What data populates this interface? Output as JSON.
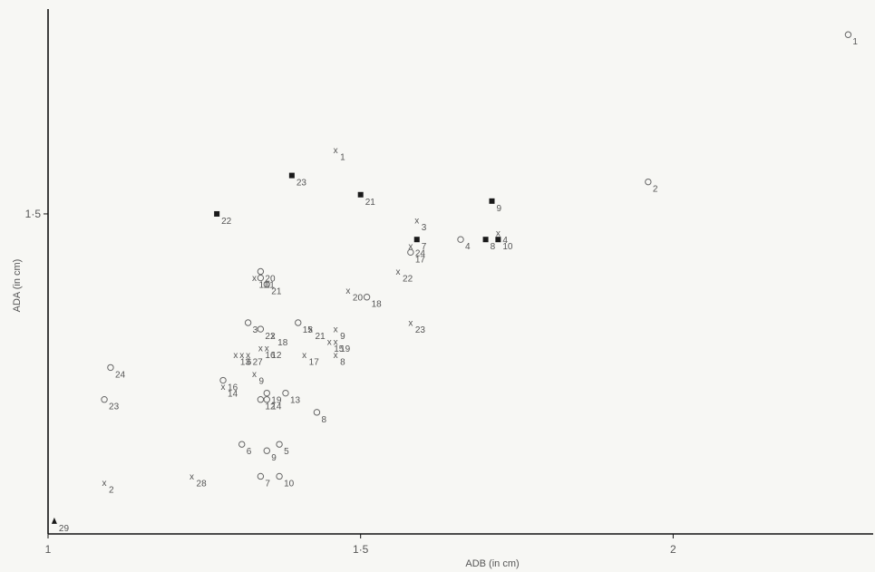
{
  "chart_data": {
    "type": "scatter",
    "xlabel": "ADB (in cm)",
    "ylabel": "ADA (in cm)",
    "xlim": [
      1,
      2.32
    ],
    "ylim": [
      1.0,
      1.82
    ],
    "x_ticks": [
      {
        "value": 1,
        "label": "1"
      },
      {
        "value": 1.5,
        "label": "1·5"
      },
      {
        "value": 2,
        "label": "2"
      }
    ],
    "y_ticks": [
      {
        "value": 1.5,
        "label": "1·5"
      }
    ],
    "marker_colors": {
      "axis": "#111111",
      "square": "#1a1a1a",
      "glyph": "#666666"
    },
    "series": [
      {
        "marker": "o",
        "points": [
          {
            "x": 2.28,
            "y": 1.78,
            "label": "1"
          },
          {
            "x": 1.96,
            "y": 1.55,
            "label": "2"
          },
          {
            "x": 1.32,
            "y": 1.33,
            "label": "3"
          },
          {
            "x": 1.66,
            "y": 1.46,
            "label": "4"
          },
          {
            "x": 1.37,
            "y": 1.14,
            "label": "5"
          },
          {
            "x": 1.31,
            "y": 1.14,
            "label": "6"
          },
          {
            "x": 1.34,
            "y": 1.09,
            "label": "7"
          },
          {
            "x": 1.43,
            "y": 1.19,
            "label": "8"
          },
          {
            "x": 1.35,
            "y": 1.13,
            "label": "9"
          },
          {
            "x": 1.37,
            "y": 1.09,
            "label": "10"
          },
          {
            "x": 1.34,
            "y": 1.4,
            "label": "11"
          },
          {
            "x": 1.34,
            "y": 1.21,
            "label": "12"
          },
          {
            "x": 1.38,
            "y": 1.22,
            "label": "13"
          },
          {
            "x": 1.35,
            "y": 1.21,
            "label": "14"
          },
          {
            "x": 1.4,
            "y": 1.33,
            "label": "15"
          },
          {
            "x": 1.28,
            "y": 1.24,
            "label": "16"
          },
          {
            "x": 1.58,
            "y": 1.44,
            "label": "17"
          },
          {
            "x": 1.51,
            "y": 1.37,
            "label": "18"
          },
          {
            "x": 1.35,
            "y": 1.22,
            "label": "19"
          },
          {
            "x": 1.34,
            "y": 1.41,
            "label": "20"
          },
          {
            "x": 1.35,
            "y": 1.39,
            "label": "21"
          },
          {
            "x": 1.34,
            "y": 1.32,
            "label": "22"
          },
          {
            "x": 1.09,
            "y": 1.21,
            "label": "23"
          },
          {
            "x": 1.1,
            "y": 1.26,
            "label": "24"
          }
        ]
      },
      {
        "marker": "x",
        "points": [
          {
            "x": 1.46,
            "y": 1.6,
            "label": "1"
          },
          {
            "x": 1.09,
            "y": 1.08,
            "label": "2"
          },
          {
            "x": 1.59,
            "y": 1.49,
            "label": "3"
          },
          {
            "x": 1.72,
            "y": 1.47,
            "label": "4"
          },
          {
            "x": 1.31,
            "y": 1.28,
            "label": "6"
          },
          {
            "x": 1.46,
            "y": 1.28,
            "label": "8"
          },
          {
            "x": 1.46,
            "y": 1.32,
            "label": "9"
          },
          {
            "x": 1.33,
            "y": 1.25,
            "label": "9"
          },
          {
            "x": 1.33,
            "y": 1.4,
            "label": "11"
          },
          {
            "x": 1.35,
            "y": 1.29,
            "label": "12"
          },
          {
            "x": 1.3,
            "y": 1.28,
            "label": "13"
          },
          {
            "x": 1.28,
            "y": 1.23,
            "label": "14"
          },
          {
            "x": 1.45,
            "y": 1.3,
            "label": "15"
          },
          {
            "x": 1.34,
            "y": 1.29,
            "label": "16"
          },
          {
            "x": 1.41,
            "y": 1.28,
            "label": "17"
          },
          {
            "x": 1.36,
            "y": 1.31,
            "label": "18"
          },
          {
            "x": 1.46,
            "y": 1.3,
            "label": "19"
          },
          {
            "x": 1.48,
            "y": 1.38,
            "label": "20"
          },
          {
            "x": 1.42,
            "y": 1.32,
            "label": "21"
          },
          {
            "x": 1.56,
            "y": 1.41,
            "label": "22"
          },
          {
            "x": 1.58,
            "y": 1.33,
            "label": "23"
          },
          {
            "x": 1.58,
            "y": 1.45,
            "label": "24"
          },
          {
            "x": 1.32,
            "y": 1.28,
            "label": "27"
          },
          {
            "x": 1.23,
            "y": 1.09,
            "label": "28"
          }
        ]
      },
      {
        "marker": "square",
        "points": [
          {
            "x": 1.39,
            "y": 1.56,
            "label": "23"
          },
          {
            "x": 1.5,
            "y": 1.53,
            "label": "21"
          },
          {
            "x": 1.27,
            "y": 1.5,
            "label": "22"
          },
          {
            "x": 1.71,
            "y": 1.52,
            "label": "9"
          },
          {
            "x": 1.59,
            "y": 1.46,
            "label": "7"
          },
          {
            "x": 1.7,
            "y": 1.46,
            "label": "8"
          },
          {
            "x": 1.72,
            "y": 1.46,
            "label": "10"
          }
        ]
      },
      {
        "marker": "triangle",
        "points": [
          {
            "x": 1.01,
            "y": 1.02,
            "label": "29"
          }
        ]
      }
    ]
  }
}
